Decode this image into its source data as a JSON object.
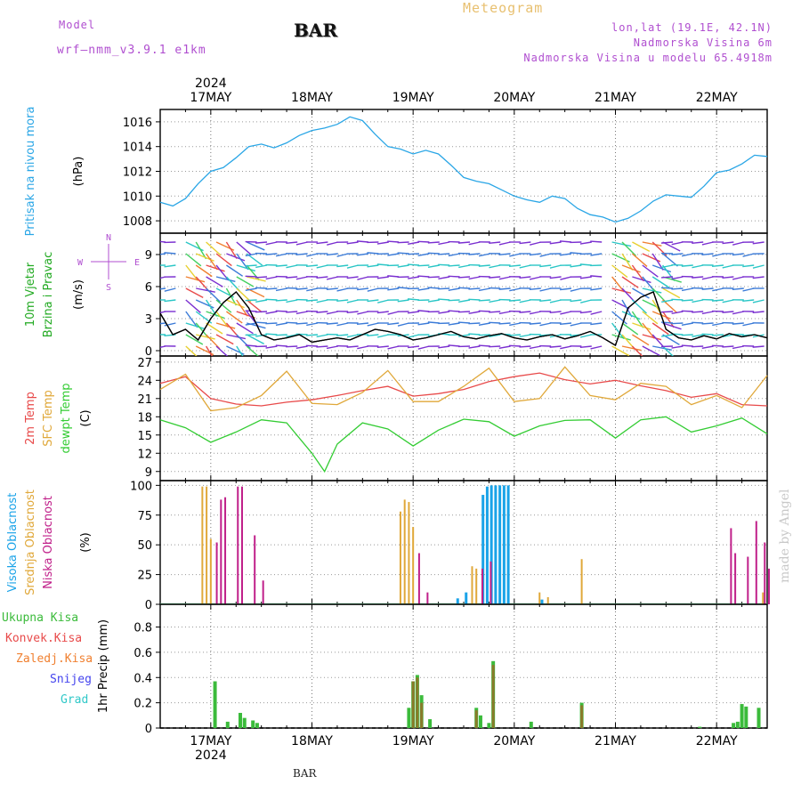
{
  "header": {
    "title": "BAR",
    "product": "Meteogram",
    "model_label": "Model",
    "model_name": "wrf—nmm_v3.9.1  e1km",
    "location_lines": [
      "lon,lat (19.1E, 42.1N)",
      "Nadmorska Visina 6m",
      "Nadmorska Visina u modelu 65.4918m"
    ],
    "footer": "BAR",
    "credit": "made by Angel"
  },
  "colors": {
    "pressure": "#2aa6e6",
    "temp2m": "#e84a4a",
    "sfc": "#e0a83a",
    "dewpt": "#33cc33",
    "high_cloud": "#1aa3e8",
    "mid_cloud": "#e0a83a",
    "low_cloud": "#c0208a",
    "total_precip": "#3bbb3b",
    "conv_precip": "#e84a4a",
    "frozen": "#f08030",
    "snow": "#4444ee",
    "hail": "#30c8c8",
    "wind_axis_labels": "#22aa22"
  },
  "chart_data": [
    {
      "type": "line",
      "panel": "pressure",
      "ylabel_lines": [
        "Pritisak na nivou mora",
        "(hPa)"
      ],
      "ylim": [
        1007,
        1017
      ],
      "yticks": [
        1008,
        1010,
        1012,
        1014,
        1016
      ],
      "x_days": [
        "17MAY",
        "18MAY",
        "19MAY",
        "20MAY",
        "21MAY",
        "22MAY"
      ],
      "x_year": "2024",
      "x_start": "2024-05-16 12:00",
      "x_end": "2024-05-22 12:00",
      "grid": true,
      "series": [
        {
          "x": [
            "2024-05-16 12:00",
            "2024-05-16 15:00",
            "2024-05-16 18:00",
            "2024-05-16 21:00",
            "2024-05-17 00:00",
            "2024-05-17 03:00",
            "2024-05-17 06:00",
            "2024-05-17 09:00",
            "2024-05-17 12:00",
            "2024-05-17 15:00",
            "2024-05-17 18:00",
            "2024-05-17 21:00",
            "2024-05-18 00:00",
            "2024-05-18 03:00",
            "2024-05-18 06:00",
            "2024-05-18 09:00",
            "2024-05-18 12:00",
            "2024-05-18 15:00",
            "2024-05-18 18:00",
            "2024-05-18 21:00",
            "2024-05-19 00:00",
            "2024-05-19 03:00",
            "2024-05-19 06:00",
            "2024-05-19 09:00",
            "2024-05-19 12:00",
            "2024-05-19 15:00",
            "2024-05-19 18:00",
            "2024-05-19 21:00",
            "2024-05-20 00:00",
            "2024-05-20 03:00",
            "2024-05-20 06:00",
            "2024-05-20 09:00",
            "2024-05-20 12:00",
            "2024-05-20 15:00",
            "2024-05-20 18:00",
            "2024-05-20 21:00",
            "2024-05-21 00:00",
            "2024-05-21 03:00",
            "2024-05-21 06:00",
            "2024-05-21 09:00",
            "2024-05-21 12:00",
            "2024-05-21 15:00",
            "2024-05-21 18:00",
            "2024-05-21 21:00",
            "2024-05-22 00:00",
            "2024-05-22 03:00",
            "2024-05-22 06:00",
            "2024-05-22 09:00",
            "2024-05-22 12:00"
          ],
          "y": [
            1009.5,
            1009.2,
            1009.8,
            1011.0,
            1012.0,
            1012.3,
            1013.1,
            1014.0,
            1014.2,
            1013.9,
            1014.3,
            1014.9,
            1015.3,
            1015.5,
            1015.8,
            1016.4,
            1016.1,
            1015.0,
            1014.0,
            1013.8,
            1013.4,
            1013.7,
            1013.4,
            1012.5,
            1011.5,
            1011.2,
            1011.0,
            1010.5,
            1010.0,
            1009.7,
            1009.5,
            1010.0,
            1009.8,
            1009.0,
            1008.5,
            1008.3,
            1007.9,
            1008.2,
            1008.8,
            1009.6,
            1010.1,
            1010.0,
            1009.9,
            1010.8,
            1011.9,
            1012.1,
            1012.6,
            1013.3,
            1013.2
          ]
        }
      ]
    },
    {
      "type": "line",
      "panel": "wind",
      "ylabel_lines": [
        "10m Vjetar",
        "Brzina i Pravac",
        "(m/s)"
      ],
      "direction_key": [
        "N",
        "W",
        "E",
        "S"
      ],
      "ylim": [
        -0.5,
        11
      ],
      "yticks": [
        0,
        3,
        6,
        9
      ],
      "grid": true,
      "series": [
        {
          "x": [
            "2024-05-16 12:00",
            "2024-05-16 15:00",
            "2024-05-16 18:00",
            "2024-05-16 21:00",
            "2024-05-17 00:00",
            "2024-05-17 03:00",
            "2024-05-17 06:00",
            "2024-05-17 09:00",
            "2024-05-17 12:00",
            "2024-05-17 15:00",
            "2024-05-17 18:00",
            "2024-05-17 21:00",
            "2024-05-18 00:00",
            "2024-05-18 03:00",
            "2024-05-18 06:00",
            "2024-05-18 09:00",
            "2024-05-18 12:00",
            "2024-05-18 15:00",
            "2024-05-18 18:00",
            "2024-05-18 21:00",
            "2024-05-19 00:00",
            "2024-05-19 03:00",
            "2024-05-19 06:00",
            "2024-05-19 09:00",
            "2024-05-19 12:00",
            "2024-05-19 15:00",
            "2024-05-19 18:00",
            "2024-05-19 21:00",
            "2024-05-20 00:00",
            "2024-05-20 03:00",
            "2024-05-20 06:00",
            "2024-05-20 09:00",
            "2024-05-20 12:00",
            "2024-05-20 15:00",
            "2024-05-20 18:00",
            "2024-05-20 21:00",
            "2024-05-21 00:00",
            "2024-05-21 03:00",
            "2024-05-21 06:00",
            "2024-05-21 09:00",
            "2024-05-21 12:00",
            "2024-05-21 15:00",
            "2024-05-21 18:00",
            "2024-05-21 21:00",
            "2024-05-22 00:00",
            "2024-05-22 03:00",
            "2024-05-22 06:00",
            "2024-05-22 09:00",
            "2024-05-22 12:00"
          ],
          "y": [
            3.5,
            1.5,
            2.0,
            1.0,
            3.0,
            4.5,
            5.5,
            4.0,
            1.5,
            1.0,
            1.2,
            1.5,
            0.8,
            1.0,
            1.2,
            1.0,
            1.5,
            2.0,
            1.8,
            1.5,
            1.0,
            1.2,
            1.5,
            1.8,
            1.3,
            1.1,
            1.4,
            1.6,
            1.2,
            1.0,
            1.3,
            1.5,
            1.1,
            1.4,
            1.8,
            1.2,
            0.5,
            4.0,
            5.0,
            5.5,
            2.0,
            1.2,
            1.0,
            1.4,
            1.1,
            1.6,
            1.3,
            1.5,
            1.2
          ]
        }
      ]
    },
    {
      "type": "line",
      "panel": "temperature",
      "ylabel_lines": [
        "2m Temp",
        "SFC Temp",
        "dewpt Temp",
        "(C)"
      ],
      "ylim": [
        7.5,
        28
      ],
      "yticks": [
        9,
        12,
        15,
        18,
        21,
        24,
        27
      ],
      "grid": true,
      "series": [
        {
          "name": "2m Temp",
          "x": [
            "2024-05-16 12:00",
            "2024-05-16 18:00",
            "2024-05-17 00:00",
            "2024-05-17 06:00",
            "2024-05-17 12:00",
            "2024-05-17 18:00",
            "2024-05-18 00:00",
            "2024-05-18 06:00",
            "2024-05-18 12:00",
            "2024-05-18 18:00",
            "2024-05-19 00:00",
            "2024-05-19 06:00",
            "2024-05-19 12:00",
            "2024-05-19 18:00",
            "2024-05-20 00:00",
            "2024-05-20 06:00",
            "2024-05-20 12:00",
            "2024-05-20 18:00",
            "2024-05-21 00:00",
            "2024-05-21 06:00",
            "2024-05-21 12:00",
            "2024-05-21 18:00",
            "2024-05-22 00:00",
            "2024-05-22 06:00",
            "2024-05-22 12:00"
          ],
          "y": [
            23.5,
            24.6,
            21.0,
            20.1,
            19.8,
            20.4,
            20.8,
            21.5,
            22.3,
            23.0,
            21.4,
            21.8,
            22.5,
            23.8,
            24.6,
            25.2,
            24.1,
            23.4,
            24.0,
            23.1,
            22.3,
            21.2,
            21.8,
            20.0,
            19.8
          ]
        },
        {
          "name": "SFC Temp",
          "x": [
            "2024-05-16 12:00",
            "2024-05-16 18:00",
            "2024-05-17 00:00",
            "2024-05-17 06:00",
            "2024-05-17 12:00",
            "2024-05-17 18:00",
            "2024-05-18 00:00",
            "2024-05-18 06:00",
            "2024-05-18 12:00",
            "2024-05-18 18:00",
            "2024-05-19 00:00",
            "2024-05-19 06:00",
            "2024-05-19 12:00",
            "2024-05-19 18:00",
            "2024-05-20 00:00",
            "2024-05-20 06:00",
            "2024-05-20 12:00",
            "2024-05-20 18:00",
            "2024-05-21 00:00",
            "2024-05-21 06:00",
            "2024-05-21 12:00",
            "2024-05-21 18:00",
            "2024-05-22 00:00",
            "2024-05-22 06:00",
            "2024-05-22 12:00"
          ],
          "y": [
            22.5,
            25.0,
            19.0,
            19.5,
            21.5,
            25.5,
            20.2,
            20.0,
            22.0,
            25.6,
            20.5,
            20.5,
            23.0,
            26.0,
            20.5,
            21.0,
            26.2,
            21.5,
            20.8,
            23.5,
            23.0,
            20.0,
            21.5,
            19.5,
            24.8
          ]
        },
        {
          "name": "dewpt Temp",
          "x": [
            "2024-05-16 12:00",
            "2024-05-16 18:00",
            "2024-05-17 00:00",
            "2024-05-17 06:00",
            "2024-05-17 12:00",
            "2024-05-17 18:00",
            "2024-05-18 00:00",
            "2024-05-18 03:00",
            "2024-05-18 06:00",
            "2024-05-18 12:00",
            "2024-05-18 18:00",
            "2024-05-19 00:00",
            "2024-05-19 06:00",
            "2024-05-19 12:00",
            "2024-05-19 18:00",
            "2024-05-20 00:00",
            "2024-05-20 06:00",
            "2024-05-20 12:00",
            "2024-05-20 18:00",
            "2024-05-21 00:00",
            "2024-05-21 06:00",
            "2024-05-21 12:00",
            "2024-05-21 18:00",
            "2024-05-22 00:00",
            "2024-05-22 06:00",
            "2024-05-22 12:00"
          ],
          "y": [
            17.5,
            16.2,
            13.8,
            15.5,
            17.5,
            17.0,
            12.0,
            9.0,
            13.5,
            17.0,
            16.0,
            13.2,
            15.8,
            17.6,
            17.2,
            14.8,
            16.5,
            17.4,
            17.5,
            14.5,
            17.5,
            18.0,
            15.5,
            16.5,
            17.8,
            15.2
          ]
        }
      ]
    },
    {
      "type": "bar",
      "panel": "cloud",
      "ylabel_lines": [
        "Visoka Oblacnost",
        "Srednja Oblacnost",
        "Niska Oblacnost",
        "(%)"
      ],
      "ylim": [
        0,
        104
      ],
      "yticks": [
        0,
        25,
        50,
        75,
        100
      ],
      "grid": true,
      "series": [
        {
          "name": "Visoka Oblacnost",
          "x": [
            "2024-05-19 11:00",
            "2024-05-19 13:00",
            "2024-05-19 17:00",
            "2024-05-19 18:00",
            "2024-05-19 19:00",
            "2024-05-19 20:00",
            "2024-05-19 21:00",
            "2024-05-19 22:00",
            "2024-05-19 23:00",
            "2024-05-20 07:00"
          ],
          "y": [
            5,
            10,
            92,
            99,
            100,
            100,
            100,
            100,
            100,
            4
          ]
        },
        {
          "name": "Srednja Oblacnost",
          "x": [
            "2024-05-16 22:00",
            "2024-05-16 23:00",
            "2024-05-17 00:00",
            "2024-05-18 21:00",
            "2024-05-18 22:00",
            "2024-05-18 23:00",
            "2024-05-19 00:00",
            "2024-05-19 14:00",
            "2024-05-19 15:00",
            "2024-05-20 06:00",
            "2024-05-20 08:00",
            "2024-05-20 16:00",
            "2024-05-22 11:00"
          ],
          "y": [
            99,
            99,
            55,
            78,
            88,
            86,
            65,
            32,
            30,
            10,
            6,
            38,
            10
          ]
        },
        {
          "name": "Niska Oblacnost",
          "x": [
            "2024-05-17 01:00",
            "2024-05-17 02:00",
            "2024-05-17 03:00",
            "2024-05-17 06:00",
            "2024-05-17 07:00",
            "2024-05-17 10:00",
            "2024-05-17 12:00",
            "2024-05-19 01:00",
            "2024-05-19 03:00",
            "2024-05-19 16:00",
            "2024-05-19 18:00",
            "2024-05-22 03:00",
            "2024-05-22 04:00",
            "2024-05-22 07:00",
            "2024-05-22 09:00",
            "2024-05-22 11:00",
            "2024-05-22 12:00"
          ],
          "y": [
            52,
            88,
            90,
            99,
            99,
            58,
            20,
            43,
            10,
            30,
            36,
            64,
            43,
            40,
            70,
            52,
            30
          ]
        }
      ]
    },
    {
      "type": "bar",
      "panel": "precip",
      "ylabel_lines": [
        "1hr Precip (mm)"
      ],
      "legend": [
        "Ukupna Kisa",
        "Konvek.Kisa",
        "Zaledj.Kisa",
        "Snijeg",
        "Grad"
      ],
      "ylim": [
        0,
        0.98
      ],
      "yticks": [
        0,
        0.2,
        0.4,
        0.6,
        0.8
      ],
      "ytick_labels": [
        "0",
        "0.2",
        "0.4",
        "0.6",
        "0.8"
      ],
      "grid": true,
      "x_days": [
        "17MAY",
        "18MAY",
        "19MAY",
        "20MAY",
        "21MAY",
        "22MAY"
      ],
      "x_year": "2024",
      "series": [
        {
          "name": "Ukupna Kisa",
          "x": [
            "2024-05-17 01:00",
            "2024-05-17 04:00",
            "2024-05-17 07:00",
            "2024-05-17 08:00",
            "2024-05-17 10:00",
            "2024-05-17 11:00",
            "2024-05-18 23:00",
            "2024-05-19 00:00",
            "2024-05-19 01:00",
            "2024-05-19 02:00",
            "2024-05-19 04:00",
            "2024-05-19 15:00",
            "2024-05-19 16:00",
            "2024-05-19 18:00",
            "2024-05-19 19:00",
            "2024-05-20 04:00",
            "2024-05-20 16:00",
            "2024-05-21 20:00",
            "2024-05-22 04:00",
            "2024-05-22 05:00",
            "2024-05-22 06:00",
            "2024-05-22 07:00",
            "2024-05-22 10:00"
          ],
          "y": [
            0.37,
            0.05,
            0.12,
            0.08,
            0.06,
            0.04,
            0.16,
            0.37,
            0.42,
            0.26,
            0.07,
            0.16,
            0.1,
            0.04,
            0.53,
            0.05,
            0.2,
            0.01,
            0.04,
            0.05,
            0.19,
            0.17,
            0.16
          ]
        },
        {
          "name": "Konvek.Kisa",
          "x": [
            "2024-05-19 00:00",
            "2024-05-19 01:00",
            "2024-05-19 02:00",
            "2024-05-19 15:00",
            "2024-05-19 19:00",
            "2024-05-20 16:00"
          ],
          "y": [
            0.37,
            0.4,
            0.2,
            0.14,
            0.5,
            0.18
          ]
        }
      ]
    }
  ]
}
